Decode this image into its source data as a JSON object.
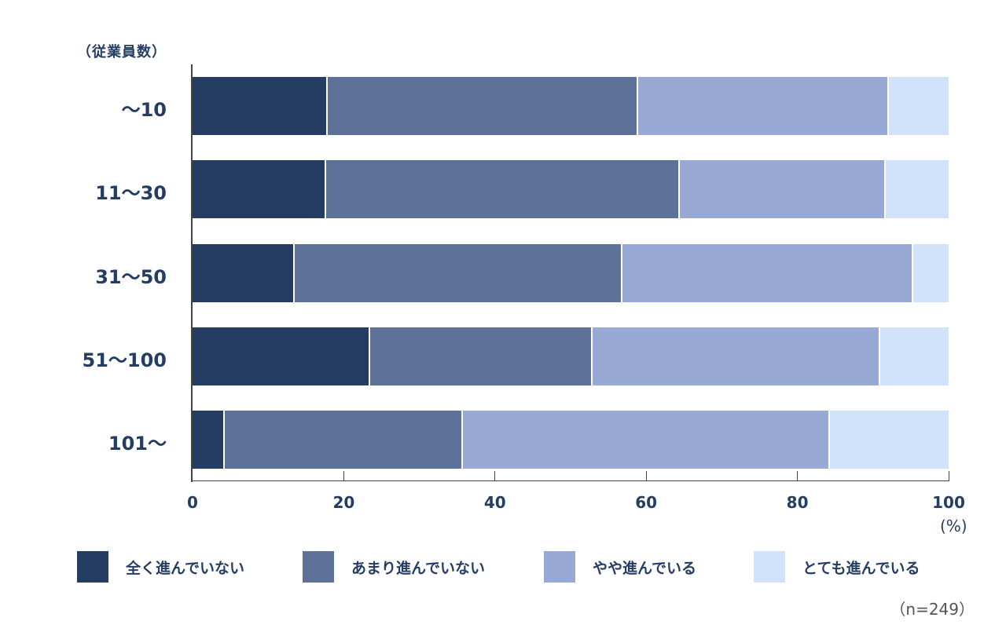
{
  "chart_data": {
    "type": "bar",
    "orientation": "horizontal",
    "stacked": true,
    "title": "",
    "ylabel": "（従業員数）",
    "xlabel": "(%)",
    "xlim": [
      0,
      100
    ],
    "xticks": [
      "0",
      "20",
      "40",
      "60",
      "80",
      "100"
    ],
    "categories": [
      "〜10",
      "11〜30",
      "31〜50",
      "51〜100",
      "101〜"
    ],
    "series": [
      {
        "name": "全く進んでいない",
        "color": "#263d63",
        "values": [
          17.9,
          17.7,
          13.5,
          23.5,
          4.3
        ]
      },
      {
        "name": "あまり進んでいない",
        "color": "#5e7199",
        "values": [
          41.0,
          46.7,
          43.4,
          29.4,
          31.5
        ]
      },
      {
        "name": "やや進んでいる",
        "color": "#97a9d4",
        "values": [
          33.2,
          27.3,
          38.4,
          38.1,
          48.5
        ]
      },
      {
        "name": "とても進んでいる",
        "color": "#d1e3fb",
        "values": [
          7.9,
          8.3,
          4.7,
          9.0,
          15.7
        ]
      }
    ],
    "legend_position": "bottom",
    "grid": false,
    "annotation": "（n=249）"
  },
  "labels": {
    "y_title": "（従業員数）",
    "pct_unit": "(%)",
    "note": "（n=249）"
  }
}
